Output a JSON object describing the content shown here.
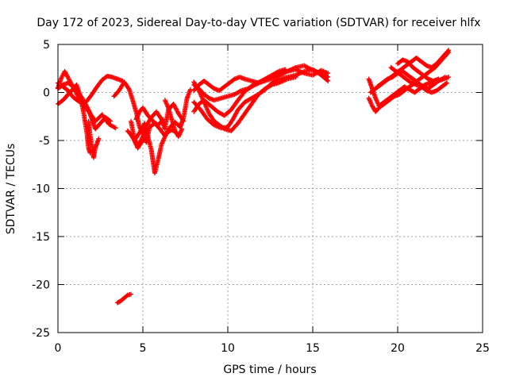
{
  "chart_data": {
    "type": "scatter",
    "title": "Day 172 of 2023, Sidereal Day-to-day VTEC variation (SDTVAR) for receiver hlfx",
    "xlabel": "GPS time / hours",
    "ylabel": "SDTVAR / TECUs",
    "xlim": [
      0,
      25
    ],
    "ylim": [
      -25,
      5
    ],
    "xticks": [
      0,
      5,
      10,
      15,
      20,
      25
    ],
    "yticks": [
      5,
      0,
      -5,
      -10,
      -15,
      -20,
      -25
    ],
    "grid": true,
    "marker": "+",
    "series_color": "#ff0000",
    "tracks": [
      [
        [
          0.0,
          0.5
        ],
        [
          0.2,
          1.5
        ],
        [
          0.4,
          2.2
        ],
        [
          0.7,
          1.2
        ],
        [
          1.0,
          0.2
        ],
        [
          1.3,
          -0.8
        ],
        [
          1.6,
          -1.5
        ],
        [
          1.9,
          -2.2
        ],
        [
          2.2,
          -3.0
        ],
        [
          2.6,
          -2.3
        ],
        [
          3.0,
          -3.3
        ],
        [
          3.4,
          -3.7
        ]
      ],
      [
        [
          0.0,
          -1.2
        ],
        [
          0.3,
          -0.8
        ],
        [
          0.6,
          -0.2
        ],
        [
          0.9,
          0.4
        ],
        [
          1.1,
          0.8
        ],
        [
          1.3,
          -0.3
        ],
        [
          1.5,
          -2.0
        ],
        [
          1.7,
          -4.2
        ],
        [
          1.8,
          -5.8
        ],
        [
          1.9,
          -6.3
        ]
      ],
      [
        [
          0.0,
          1.0
        ],
        [
          0.3,
          0.6
        ],
        [
          0.6,
          0.2
        ],
        [
          0.9,
          -0.5
        ],
        [
          1.2,
          -0.9
        ],
        [
          1.5,
          -1.2
        ],
        [
          1.7,
          -0.9
        ],
        [
          2.0,
          -0.2
        ],
        [
          2.3,
          0.6
        ],
        [
          2.6,
          1.3
        ],
        [
          2.9,
          1.7
        ],
        [
          3.2,
          1.6
        ],
        [
          3.5,
          1.4
        ],
        [
          3.8,
          1.2
        ]
      ],
      [
        [
          0.0,
          0.4
        ],
        [
          0.3,
          0.8
        ],
        [
          0.6,
          1.0
        ],
        [
          0.9,
          0.6
        ],
        [
          1.2,
          0.0
        ],
        [
          1.5,
          -0.8
        ],
        [
          1.8,
          -1.8
        ],
        [
          2.0,
          -2.8
        ],
        [
          2.2,
          -3.8
        ],
        [
          2.5,
          -3.2
        ],
        [
          2.8,
          -2.6
        ],
        [
          3.1,
          -3.0
        ]
      ],
      [
        [
          1.8,
          -3.0
        ],
        [
          1.9,
          -4.5
        ],
        [
          2.0,
          -5.6
        ],
        [
          2.1,
          -6.8
        ],
        [
          2.2,
          -5.8
        ],
        [
          2.4,
          -4.8
        ]
      ],
      [
        [
          3.3,
          -0.4
        ],
        [
          3.6,
          0.2
        ],
        [
          3.9,
          1.1
        ],
        [
          4.2,
          0.3
        ],
        [
          4.4,
          -0.8
        ],
        [
          4.6,
          -2.0
        ],
        [
          4.8,
          -3.6
        ],
        [
          5.0,
          -4.2
        ],
        [
          5.2,
          -5.2
        ],
        [
          5.4,
          -3.6
        ],
        [
          5.7,
          -3.2
        ],
        [
          6.0,
          -3.8
        ],
        [
          6.3,
          -4.5
        ],
        [
          6.6,
          -3.6
        ],
        [
          6.9,
          -3.1
        ],
        [
          7.2,
          -3.6
        ],
        [
          7.4,
          -2.6
        ],
        [
          7.6,
          -0.6
        ],
        [
          7.8,
          0.3
        ]
      ],
      [
        [
          4.3,
          -3.0
        ],
        [
          4.5,
          -4.8
        ],
        [
          4.7,
          -5.6
        ],
        [
          5.0,
          -4.6
        ],
        [
          5.3,
          -3.2
        ],
        [
          5.5,
          -2.6
        ],
        [
          5.8,
          -2.0
        ],
        [
          6.1,
          -2.8
        ],
        [
          6.3,
          -3.8
        ],
        [
          6.5,
          -1.8
        ],
        [
          6.8,
          -1.2
        ],
        [
          7.1,
          -2.2
        ],
        [
          7.4,
          -3.0
        ]
      ],
      [
        [
          4.5,
          -5.0
        ],
        [
          4.8,
          -4.2
        ],
        [
          5.1,
          -3.2
        ],
        [
          5.3,
          -4.6
        ],
        [
          5.5,
          -6.0
        ],
        [
          5.6,
          -7.2
        ],
        [
          5.7,
          -8.4
        ],
        [
          5.9,
          -7.0
        ],
        [
          6.1,
          -5.4
        ],
        [
          6.4,
          -4.2
        ],
        [
          6.7,
          -3.9
        ],
        [
          7.0,
          -4.2
        ]
      ],
      [
        [
          4.1,
          -4.0
        ],
        [
          4.3,
          -4.4
        ],
        [
          4.5,
          -5.0
        ],
        [
          4.7,
          -5.8
        ],
        [
          4.9,
          -5.2
        ],
        [
          5.1,
          -4.8
        ]
      ],
      [
        [
          4.6,
          -2.8
        ],
        [
          4.8,
          -2.0
        ],
        [
          5.0,
          -1.6
        ],
        [
          5.3,
          -2.4
        ],
        [
          5.6,
          -3.0
        ],
        [
          5.9,
          -3.4
        ],
        [
          6.2,
          -2.8
        ]
      ],
      [
        [
          6.3,
          -0.8
        ],
        [
          6.5,
          -1.6
        ],
        [
          6.7,
          -2.8
        ],
        [
          6.9,
          -4.0
        ],
        [
          7.1,
          -4.6
        ],
        [
          7.3,
          -3.8
        ]
      ],
      [
        [
          3.5,
          -21.9
        ],
        [
          3.7,
          -21.7
        ],
        [
          3.9,
          -21.4
        ],
        [
          4.1,
          -21.1
        ],
        [
          4.3,
          -21.0
        ]
      ],
      [
        [
          8.0,
          -2.0
        ],
        [
          8.3,
          -1.2
        ],
        [
          8.6,
          -0.8
        ],
        [
          9.0,
          -1.4
        ],
        [
          9.4,
          -2.0
        ],
        [
          9.8,
          -2.4
        ],
        [
          10.2,
          -1.8
        ],
        [
          10.6,
          -0.8
        ],
        [
          11.0,
          0.1
        ],
        [
          11.5,
          0.8
        ],
        [
          12.0,
          1.2
        ],
        [
          12.5,
          1.6
        ],
        [
          13.0,
          1.8
        ],
        [
          13.5,
          2.2
        ],
        [
          14.0,
          2.6
        ],
        [
          14.5,
          2.8
        ],
        [
          15.0,
          2.3
        ],
        [
          15.5,
          2.0
        ],
        [
          15.9,
          1.6
        ]
      ],
      [
        [
          8.0,
          -1.0
        ],
        [
          8.4,
          -1.8
        ],
        [
          8.8,
          -2.8
        ],
        [
          9.2,
          -3.4
        ],
        [
          9.6,
          -3.7
        ],
        [
          10.0,
          -3.6
        ],
        [
          10.3,
          -2.8
        ],
        [
          10.6,
          -1.8
        ],
        [
          11.0,
          -1.0
        ],
        [
          11.4,
          -0.6
        ],
        [
          11.8,
          -0.2
        ],
        [
          12.2,
          0.3
        ],
        [
          12.6,
          1.0
        ],
        [
          13.0,
          1.4
        ],
        [
          13.5,
          1.6
        ],
        [
          14.0,
          1.8
        ],
        [
          14.5,
          2.2
        ],
        [
          15.0,
          2.4
        ],
        [
          15.5,
          1.8
        ],
        [
          15.9,
          1.2
        ]
      ],
      [
        [
          8.0,
          0.8
        ],
        [
          8.3,
          0.4
        ],
        [
          8.6,
          -0.2
        ],
        [
          8.9,
          -0.6
        ],
        [
          9.2,
          -0.8
        ],
        [
          9.6,
          -0.6
        ],
        [
          10.0,
          -0.4
        ],
        [
          10.4,
          -0.2
        ],
        [
          10.8,
          0.2
        ],
        [
          11.2,
          0.4
        ],
        [
          11.6,
          0.8
        ],
        [
          12.0,
          1.1
        ],
        [
          12.5,
          1.4
        ],
        [
          13.0,
          1.8
        ],
        [
          13.5,
          2.2
        ],
        [
          14.0,
          2.4
        ],
        [
          14.5,
          2.0
        ],
        [
          15.0,
          1.8
        ],
        [
          15.5,
          2.3
        ],
        [
          15.9,
          2.0
        ]
      ],
      [
        [
          8.0,
          1.1
        ],
        [
          8.3,
          0.2
        ],
        [
          8.6,
          -1.0
        ],
        [
          8.9,
          -2.2
        ],
        [
          9.2,
          -3.0
        ],
        [
          9.5,
          -3.4
        ],
        [
          9.8,
          -3.8
        ],
        [
          10.2,
          -4.0
        ],
        [
          10.6,
          -3.2
        ],
        [
          11.0,
          -2.2
        ],
        [
          11.4,
          -1.2
        ],
        [
          11.8,
          -0.2
        ],
        [
          12.2,
          0.4
        ],
        [
          12.6,
          0.8
        ],
        [
          13.0,
          1.0
        ],
        [
          13.5,
          1.4
        ],
        [
          14.0,
          1.6
        ]
      ],
      [
        [
          8.0,
          0.2
        ],
        [
          8.3,
          0.8
        ],
        [
          8.6,
          1.2
        ],
        [
          8.9,
          0.8
        ],
        [
          9.2,
          0.4
        ],
        [
          9.5,
          0.2
        ],
        [
          9.8,
          0.6
        ],
        [
          10.1,
          1.0
        ],
        [
          10.4,
          1.4
        ],
        [
          10.7,
          1.6
        ],
        [
          11.0,
          1.4
        ],
        [
          11.4,
          1.2
        ],
        [
          11.8,
          1.0
        ],
        [
          12.2,
          1.4
        ],
        [
          12.6,
          1.8
        ],
        [
          13.0,
          2.2
        ],
        [
          13.4,
          2.4
        ]
      ],
      [
        [
          18.3,
          1.4
        ],
        [
          18.5,
          0.4
        ],
        [
          18.7,
          -0.6
        ],
        [
          18.9,
          -1.4
        ],
        [
          19.2,
          -1.0
        ],
        [
          19.5,
          -0.6
        ],
        [
          19.8,
          -0.2
        ],
        [
          20.1,
          0.2
        ],
        [
          20.4,
          0.6
        ],
        [
          20.7,
          0.3
        ],
        [
          21.0,
          0.0
        ],
        [
          21.3,
          0.4
        ],
        [
          21.6,
          0.8
        ],
        [
          21.9,
          1.0
        ],
        [
          22.2,
          1.2
        ],
        [
          22.5,
          1.3
        ],
        [
          22.8,
          1.6
        ]
      ],
      [
        [
          18.3,
          -0.6
        ],
        [
          18.5,
          -1.4
        ],
        [
          18.7,
          -2.0
        ],
        [
          18.9,
          -1.6
        ],
        [
          19.2,
          -1.2
        ],
        [
          19.5,
          -0.8
        ],
        [
          19.8,
          -0.4
        ],
        [
          20.1,
          -0.2
        ],
        [
          20.4,
          0.2
        ],
        [
          20.7,
          0.6
        ],
        [
          21.0,
          1.0
        ],
        [
          21.3,
          1.4
        ],
        [
          21.6,
          1.8
        ],
        [
          21.9,
          2.2
        ],
        [
          22.2,
          2.6
        ],
        [
          22.5,
          3.2
        ],
        [
          22.8,
          3.8
        ],
        [
          23.0,
          4.2
        ]
      ],
      [
        [
          18.4,
          0.0
        ],
        [
          18.7,
          0.4
        ],
        [
          19.0,
          0.8
        ],
        [
          19.3,
          1.2
        ],
        [
          19.6,
          1.6
        ],
        [
          19.9,
          2.0
        ],
        [
          20.2,
          2.4
        ],
        [
          20.5,
          2.8
        ],
        [
          20.8,
          3.2
        ],
        [
          21.1,
          3.6
        ],
        [
          21.4,
          3.2
        ],
        [
          21.7,
          2.8
        ],
        [
          22.0,
          2.6
        ],
        [
          22.3,
          3.0
        ],
        [
          22.6,
          3.6
        ],
        [
          22.9,
          4.2
        ],
        [
          23.0,
          4.4
        ]
      ],
      [
        [
          18.8,
          0.6
        ],
        [
          19.1,
          1.0
        ],
        [
          19.4,
          1.4
        ],
        [
          19.7,
          1.6
        ],
        [
          20.0,
          2.0
        ],
        [
          20.3,
          2.2
        ],
        [
          20.6,
          1.8
        ],
        [
          20.9,
          1.4
        ],
        [
          21.2,
          1.0
        ],
        [
          21.5,
          0.6
        ],
        [
          21.8,
          0.4
        ],
        [
          22.1,
          0.8
        ],
        [
          22.4,
          1.2
        ],
        [
          22.7,
          1.4
        ],
        [
          23.0,
          1.6
        ]
      ],
      [
        [
          19.6,
          2.6
        ],
        [
          19.9,
          2.2
        ],
        [
          20.2,
          1.8
        ],
        [
          20.5,
          1.4
        ],
        [
          20.8,
          1.0
        ],
        [
          21.1,
          0.8
        ],
        [
          21.4,
          0.6
        ],
        [
          21.7,
          0.2
        ],
        [
          22.0,
          0.0
        ],
        [
          22.3,
          0.2
        ],
        [
          22.6,
          0.6
        ],
        [
          22.9,
          1.0
        ]
      ],
      [
        [
          20.0,
          3.0
        ],
        [
          20.3,
          3.4
        ],
        [
          20.6,
          3.2
        ],
        [
          20.9,
          2.6
        ],
        [
          21.2,
          2.2
        ],
        [
          21.5,
          1.8
        ],
        [
          21.8,
          1.4
        ],
        [
          22.1,
          1.2
        ],
        [
          22.4,
          1.4
        ]
      ]
    ]
  }
}
